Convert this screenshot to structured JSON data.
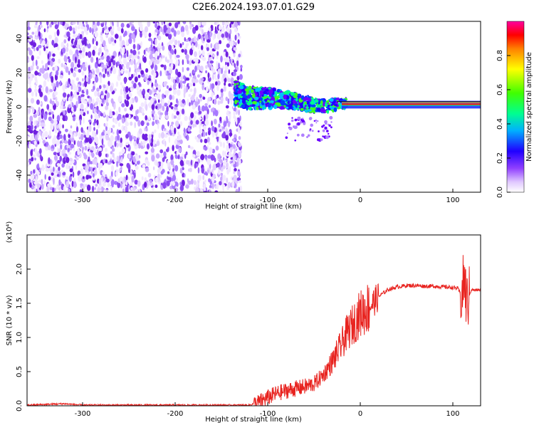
{
  "figure_title": "C2E6.2024.193.07.01.G29",
  "colors": {
    "scatter": "#7a1fe0",
    "snr_line": "#e8231f",
    "colormap": [
      "#ffffff",
      "#c9a0ff",
      "#6a00ff",
      "#0000ff",
      "#00c8ff",
      "#00ff80",
      "#40ff00",
      "#ffff00",
      "#ff8000",
      "#ff0000",
      "#ff00a0"
    ]
  },
  "chart_data": [
    {
      "type": "heatmap",
      "title": "",
      "xlabel": "Height of straight line (km)",
      "ylabel": "Frequency (Hz)",
      "xlim": [
        -360,
        130
      ],
      "ylim": [
        -50,
        50
      ],
      "xticks": [
        -300,
        -200,
        -100,
        0,
        100
      ],
      "yticks": [
        -40,
        -20,
        0,
        20,
        40
      ],
      "grid": false,
      "regions": [
        {
          "name": "noise",
          "x_range": [
            -360,
            -133
          ],
          "y_range": [
            -50,
            50
          ],
          "amplitude": "0.0-0.3"
        },
        {
          "name": "signal",
          "x_range": [
            -133,
            130
          ],
          "center_freq": [
            [
              -135,
              8
            ],
            [
              -120,
              5
            ],
            [
              -90,
              5
            ],
            [
              -60,
              2
            ],
            [
              -40,
              0
            ],
            [
              -20,
              2
            ],
            [
              0,
              1.5
            ],
            [
              50,
              1
            ],
            [
              130,
              1
            ]
          ],
          "amplitude": "0.4-1.0"
        }
      ],
      "colorbar": {
        "label": "Normalized spectral amplitude",
        "range": [
          0.0,
          1.0
        ],
        "ticks": [
          0.0,
          0.2,
          0.4,
          0.6,
          0.8
        ]
      }
    },
    {
      "type": "line",
      "title": "",
      "xlabel": "Height of straight line (km)",
      "ylabel": "SNR (10 * v/v)",
      "y_multiplier_label": "(x10⁴)",
      "xlim": [
        -360,
        130
      ],
      "ylim": [
        0,
        2.5
      ],
      "xticks": [
        -300,
        -200,
        -100,
        0,
        100
      ],
      "yticks": [
        0.0,
        0.5,
        1.0,
        1.5,
        2.0
      ],
      "grid": false,
      "series": [
        {
          "x": [
            -360,
            -340,
            -320,
            -300,
            -250,
            -200,
            -150,
            -120,
            -110,
            -100,
            -90,
            -80,
            -70,
            -60,
            -50,
            -40,
            -30,
            -20,
            -15,
            -10,
            -5,
            0,
            10,
            20,
            30,
            40,
            50,
            60,
            70,
            80,
            90,
            100,
            105,
            110,
            112,
            115,
            120,
            125,
            130
          ],
          "y": [
            0.01,
            0.02,
            0.03,
            0.01,
            0.01,
            0.01,
            0.01,
            0.01,
            0.05,
            0.12,
            0.18,
            0.22,
            0.25,
            0.28,
            0.32,
            0.45,
            0.65,
            0.9,
            1.05,
            1.15,
            1.25,
            1.35,
            1.45,
            1.6,
            1.7,
            1.74,
            1.76,
            1.76,
            1.75,
            1.75,
            1.74,
            1.73,
            1.72,
            1.6,
            1.9,
            1.5,
            1.7,
            1.69,
            1.7
          ]
        }
      ]
    }
  ]
}
